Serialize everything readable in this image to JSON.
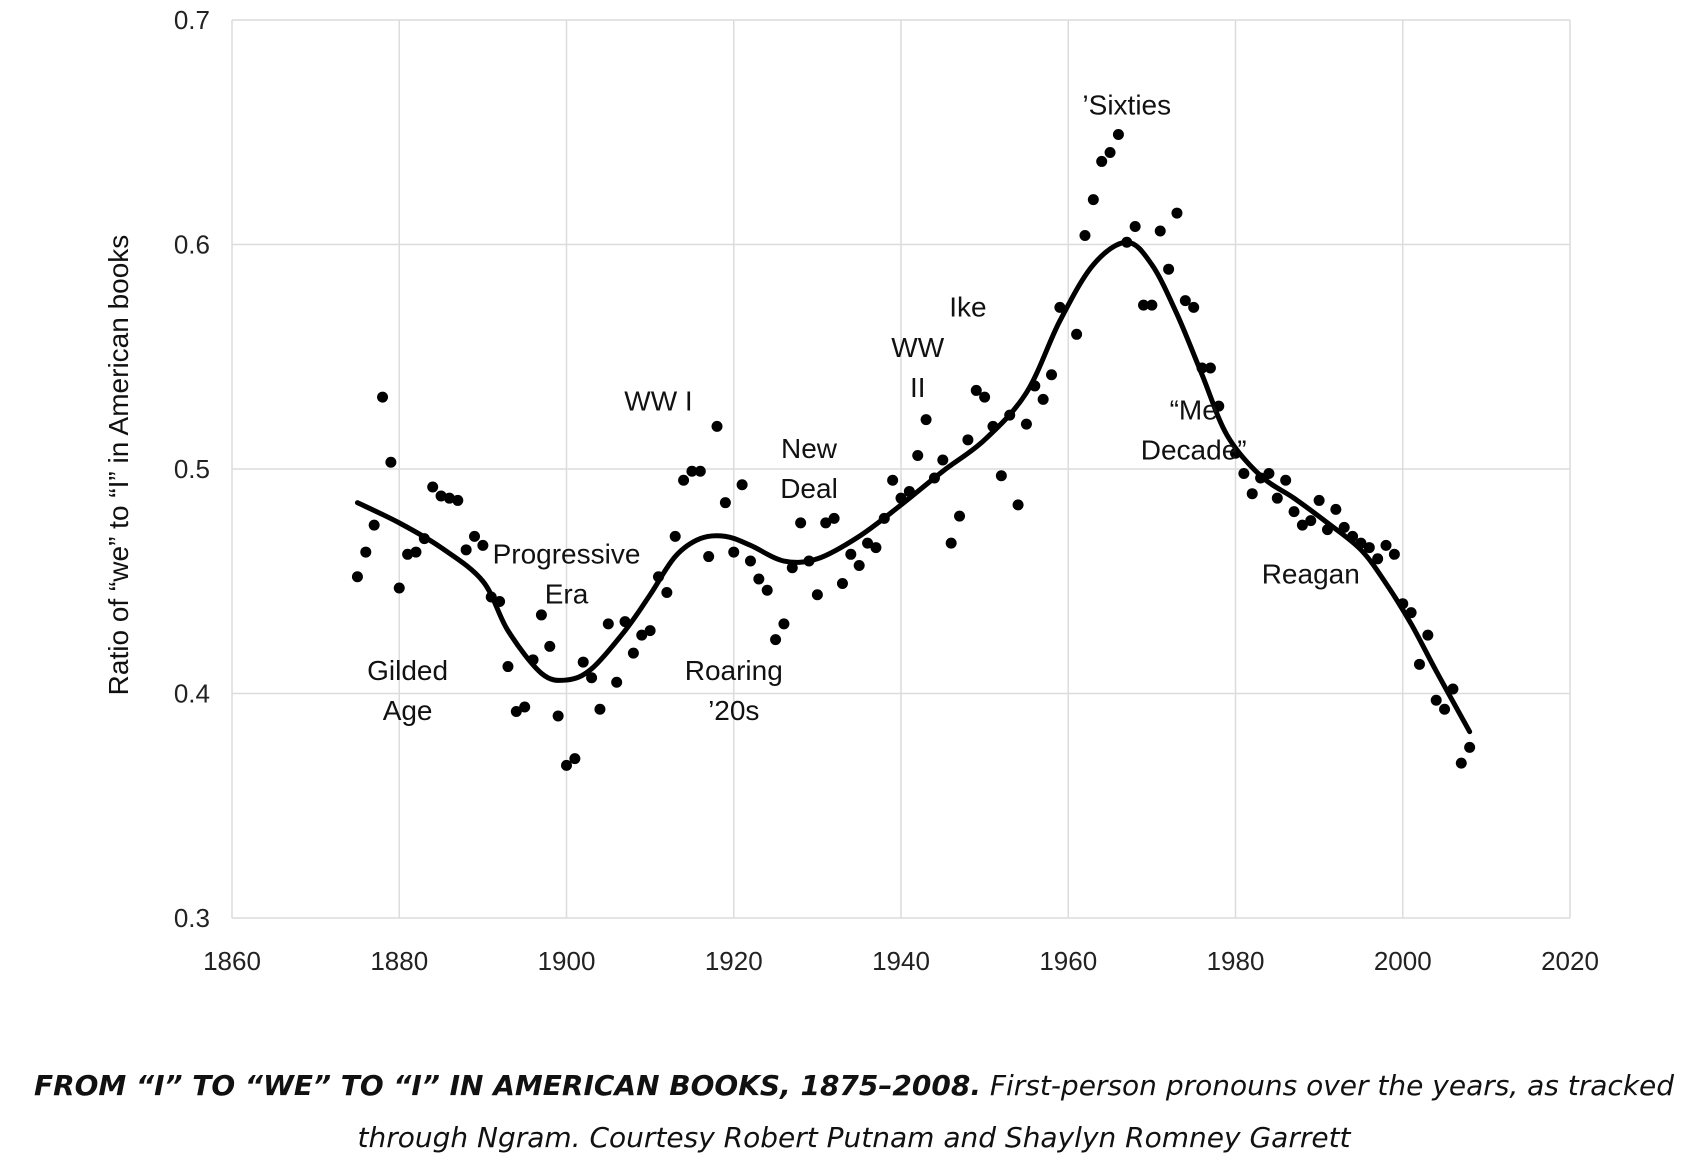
{
  "caption": {
    "bold": "FROM “I” TO “WE” TO “I” IN AMERICAN BOOKS, 1875–2008.",
    "text": " First-person pronouns over the years, as tracked through Ngram. Courtesy Robert Putnam and Shaylyn Romney Garrett"
  },
  "chart_data": {
    "type": "scatter",
    "ylabel": "Ratio of “we” to “I” in American books",
    "xlabel": "",
    "xlim": [
      1860,
      2020
    ],
    "ylim": [
      0.3,
      0.7
    ],
    "x_ticks": [
      "1860",
      "1880",
      "1900",
      "1920",
      "1940",
      "1960",
      "1980",
      "2000",
      "2020"
    ],
    "y_ticks": [
      "0.3",
      "0.4",
      "0.5",
      "0.6",
      "0.7"
    ],
    "grid": true,
    "series": [
      {
        "kind": "points",
        "points": [
          [
            1875,
            0.452
          ],
          [
            1876,
            0.463
          ],
          [
            1877,
            0.475
          ],
          [
            1878,
            0.532
          ],
          [
            1879,
            0.503
          ],
          [
            1880,
            0.447
          ],
          [
            1881,
            0.462
          ],
          [
            1882,
            0.463
          ],
          [
            1883,
            0.469
          ],
          [
            1884,
            0.492
          ],
          [
            1885,
            0.488
          ],
          [
            1886,
            0.487
          ],
          [
            1887,
            0.486
          ],
          [
            1888,
            0.464
          ],
          [
            1889,
            0.47
          ],
          [
            1890,
            0.466
          ],
          [
            1891,
            0.443
          ],
          [
            1892,
            0.441
          ],
          [
            1893,
            0.412
          ],
          [
            1894,
            0.392
          ],
          [
            1895,
            0.394
          ],
          [
            1896,
            0.415
          ],
          [
            1897,
            0.435
          ],
          [
            1898,
            0.421
          ],
          [
            1899,
            0.39
          ],
          [
            1900,
            0.368
          ],
          [
            1901,
            0.371
          ],
          [
            1902,
            0.414
          ],
          [
            1903,
            0.407
          ],
          [
            1904,
            0.393
          ],
          [
            1905,
            0.431
          ],
          [
            1906,
            0.405
          ],
          [
            1907,
            0.432
          ],
          [
            1908,
            0.418
          ],
          [
            1909,
            0.426
          ],
          [
            1910,
            0.428
          ],
          [
            1911,
            0.452
          ],
          [
            1912,
            0.445
          ],
          [
            1913,
            0.47
          ],
          [
            1914,
            0.495
          ],
          [
            1915,
            0.499
          ],
          [
            1916,
            0.499
          ],
          [
            1917,
            0.461
          ],
          [
            1918,
            0.519
          ],
          [
            1919,
            0.485
          ],
          [
            1920,
            0.463
          ],
          [
            1921,
            0.493
          ],
          [
            1922,
            0.459
          ],
          [
            1923,
            0.451
          ],
          [
            1924,
            0.446
          ],
          [
            1925,
            0.424
          ],
          [
            1926,
            0.431
          ],
          [
            1927,
            0.456
          ],
          [
            1928,
            0.476
          ],
          [
            1929,
            0.459
          ],
          [
            1930,
            0.444
          ],
          [
            1931,
            0.476
          ],
          [
            1932,
            0.478
          ],
          [
            1933,
            0.449
          ],
          [
            1934,
            0.462
          ],
          [
            1935,
            0.457
          ],
          [
            1936,
            0.467
          ],
          [
            1937,
            0.465
          ],
          [
            1938,
            0.478
          ],
          [
            1939,
            0.495
          ],
          [
            1940,
            0.487
          ],
          [
            1941,
            0.49
          ],
          [
            1942,
            0.506
          ],
          [
            1943,
            0.522
          ],
          [
            1944,
            0.496
          ],
          [
            1945,
            0.504
          ],
          [
            1946,
            0.467
          ],
          [
            1947,
            0.479
          ],
          [
            1948,
            0.513
          ],
          [
            1949,
            0.535
          ],
          [
            1950,
            0.532
          ],
          [
            1951,
            0.519
          ],
          [
            1952,
            0.497
          ],
          [
            1953,
            0.524
          ],
          [
            1954,
            0.484
          ],
          [
            1955,
            0.52
          ],
          [
            1956,
            0.537
          ],
          [
            1957,
            0.531
          ],
          [
            1958,
            0.542
          ],
          [
            1959,
            0.572
          ],
          [
            1961,
            0.56
          ],
          [
            1962,
            0.604
          ],
          [
            1963,
            0.62
          ],
          [
            1964,
            0.637
          ],
          [
            1965,
            0.641
          ],
          [
            1966,
            0.649
          ],
          [
            1967,
            0.601
          ],
          [
            1968,
            0.608
          ],
          [
            1969,
            0.573
          ],
          [
            1970,
            0.573
          ],
          [
            1971,
            0.606
          ],
          [
            1972,
            0.589
          ],
          [
            1973,
            0.614
          ],
          [
            1974,
            0.575
          ],
          [
            1975,
            0.572
          ],
          [
            1976,
            0.545
          ],
          [
            1977,
            0.545
          ],
          [
            1978,
            0.528
          ],
          [
            1980,
            0.507
          ],
          [
            1981,
            0.498
          ],
          [
            1982,
            0.489
          ],
          [
            1983,
            0.496
          ],
          [
            1984,
            0.498
          ],
          [
            1985,
            0.487
          ],
          [
            1986,
            0.495
          ],
          [
            1987,
            0.481
          ],
          [
            1988,
            0.475
          ],
          [
            1989,
            0.477
          ],
          [
            1990,
            0.486
          ],
          [
            1991,
            0.473
          ],
          [
            1992,
            0.482
          ],
          [
            1993,
            0.474
          ],
          [
            1994,
            0.47
          ],
          [
            1995,
            0.467
          ],
          [
            1996,
            0.465
          ],
          [
            1997,
            0.46
          ],
          [
            1998,
            0.466
          ],
          [
            1999,
            0.462
          ],
          [
            2000,
            0.44
          ],
          [
            2001,
            0.436
          ],
          [
            2002,
            0.413
          ],
          [
            2003,
            0.426
          ],
          [
            2004,
            0.397
          ],
          [
            2005,
            0.393
          ],
          [
            2006,
            0.402
          ],
          [
            2007,
            0.369
          ],
          [
            2008,
            0.376
          ]
        ]
      },
      {
        "kind": "trend",
        "points": [
          [
            1875,
            0.485
          ],
          [
            1880,
            0.476
          ],
          [
            1885,
            0.465
          ],
          [
            1890,
            0.45
          ],
          [
            1893,
            0.428
          ],
          [
            1897,
            0.409
          ],
          [
            1900,
            0.406
          ],
          [
            1903,
            0.411
          ],
          [
            1907,
            0.428
          ],
          [
            1910,
            0.444
          ],
          [
            1913,
            0.461
          ],
          [
            1916,
            0.469
          ],
          [
            1919,
            0.47
          ],
          [
            1922,
            0.466
          ],
          [
            1926,
            0.459
          ],
          [
            1930,
            0.46
          ],
          [
            1935,
            0.47
          ],
          [
            1940,
            0.484
          ],
          [
            1945,
            0.499
          ],
          [
            1950,
            0.513
          ],
          [
            1955,
            0.534
          ],
          [
            1959,
            0.566
          ],
          [
            1963,
            0.591
          ],
          [
            1967,
            0.601
          ],
          [
            1970,
            0.591
          ],
          [
            1973,
            0.569
          ],
          [
            1976,
            0.542
          ],
          [
            1979,
            0.515
          ],
          [
            1983,
            0.497
          ],
          [
            1987,
            0.487
          ],
          [
            1991,
            0.476
          ],
          [
            1995,
            0.464
          ],
          [
            1998,
            0.449
          ],
          [
            2001,
            0.431
          ],
          [
            2004,
            0.41
          ],
          [
            2008,
            0.383
          ]
        ]
      }
    ],
    "annotations": [
      {
        "lines": [
          "Gilded",
          "Age"
        ],
        "x": 1881,
        "y": 0.406
      },
      {
        "lines": [
          "Progressive",
          "Era"
        ],
        "x": 1900,
        "y": 0.458
      },
      {
        "lines": [
          "WW I"
        ],
        "x": 1911,
        "y": 0.526
      },
      {
        "lines": [
          "Roaring",
          "’20s"
        ],
        "x": 1920,
        "y": 0.406
      },
      {
        "lines": [
          "New",
          "Deal"
        ],
        "x": 1929,
        "y": 0.505
      },
      {
        "lines": [
          "WW",
          "II"
        ],
        "x": 1942,
        "y": 0.55
      },
      {
        "lines": [
          "Ike"
        ],
        "x": 1948,
        "y": 0.568
      },
      {
        "lines": [
          "’Sixties"
        ],
        "x": 1967,
        "y": 0.658
      },
      {
        "lines": [
          "“Me",
          "Decade”"
        ],
        "x": 1975,
        "y": 0.522
      },
      {
        "lines": [
          "Reagan"
        ],
        "x": 1989,
        "y": 0.449
      }
    ]
  }
}
